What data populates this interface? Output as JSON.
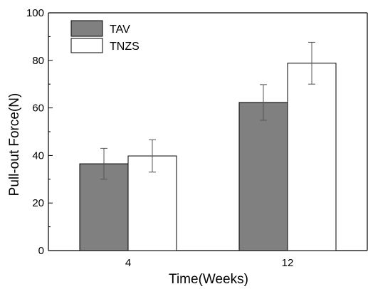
{
  "chart_data": {
    "type": "bar",
    "categories": [
      "4",
      "12"
    ],
    "series": [
      {
        "name": "TAV",
        "values": [
          36.5,
          62.3
        ],
        "errors": [
          6.5,
          7.5
        ],
        "color": "#808080"
      },
      {
        "name": "TNZS",
        "values": [
          39.8,
          78.8
        ],
        "errors": [
          6.8,
          8.8
        ],
        "color": "#ffffff"
      }
    ],
    "xlabel": "Time(Weeks)",
    "ylabel": "Pull-out Force(N)",
    "ylim": [
      0,
      100
    ],
    "yticks": [
      0,
      20,
      40,
      60,
      80,
      100
    ],
    "grid": false,
    "legend_position": "top-left"
  }
}
